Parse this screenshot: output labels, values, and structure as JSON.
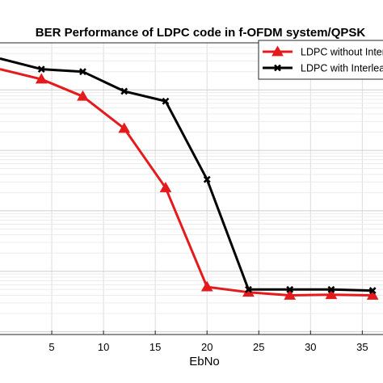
{
  "chart_data": {
    "type": "line",
    "title": "BER Performance of LDPC code in f-OFDM system/QPSK",
    "xlabel": "EbNo",
    "ylabel": "",
    "x": [
      0,
      4,
      8,
      12,
      16,
      20,
      24,
      28,
      32,
      36
    ],
    "xticks": [
      "5",
      "10",
      "15",
      "20",
      "25",
      "30",
      "35"
    ],
    "xtick_values": [
      5,
      10,
      15,
      20,
      25,
      30,
      35
    ],
    "xlim": [
      0,
      37
    ],
    "grid": true,
    "log_y": true,
    "ylim": [
      9e-06,
      0.6
    ],
    "legend_position": "top-right",
    "series": [
      {
        "name": "LDPC without Interleaving",
        "color": "#e41a1c",
        "marker": "triangle",
        "values": [
          0.22,
          0.15,
          0.078,
          0.023,
          0.0024,
          5.5e-05,
          4.5e-05,
          4e-05,
          4.1e-05,
          4e-05
        ]
      },
      {
        "name": "LDPC with Interleaving",
        "color": "#000000",
        "marker": "x",
        "values": [
          0.33,
          0.22,
          0.2,
          0.095,
          0.065,
          0.0033,
          5e-05,
          5e-05,
          5e-05,
          4.8e-05
        ]
      }
    ]
  }
}
